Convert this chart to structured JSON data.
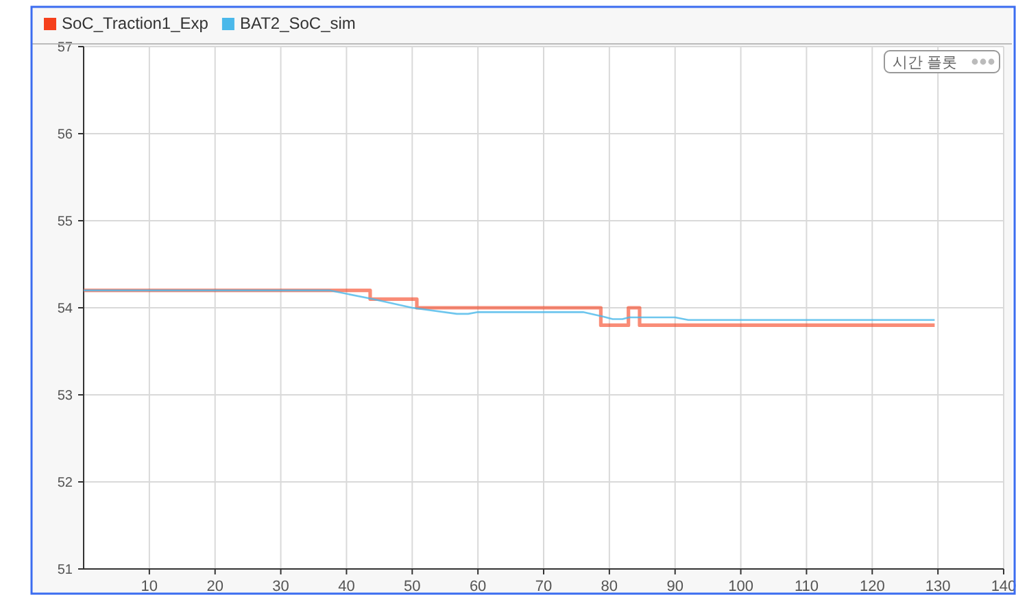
{
  "chart_data": {
    "type": "line",
    "series": [
      {
        "name": "SoC_Traction1_Exp",
        "color": "#f5401c",
        "x": [
          0,
          43.6,
          43.6,
          50.7,
          50.7,
          78.7,
          78.7,
          82.9,
          82.9,
          84.6,
          84.6,
          129.5
        ],
        "values": [
          54.2,
          54.2,
          54.1,
          54.1,
          54.0,
          54.0,
          53.8,
          53.8,
          54.0,
          54.0,
          53.8,
          53.8
        ]
      },
      {
        "name": "BAT2_SoC_sim",
        "color": "#4ab8ea",
        "x": [
          0,
          37.4,
          44,
          50,
          56.8,
          58.5,
          60,
          76,
          79,
          80.5,
          82,
          83,
          90,
          92,
          129.5
        ],
        "values": [
          54.2,
          54.2,
          54.1,
          54.0,
          53.93,
          53.93,
          53.95,
          53.95,
          53.9,
          53.87,
          53.87,
          53.89,
          53.89,
          53.86,
          53.86
        ]
      }
    ],
    "xlim": [
      0,
      140
    ],
    "ylim": [
      51,
      57
    ],
    "xticks": [
      10,
      20,
      30,
      40,
      50,
      60,
      70,
      80,
      90,
      100,
      110,
      120,
      130,
      140
    ],
    "yticks": [
      51,
      52,
      53,
      54,
      55,
      56,
      57
    ],
    "grid": true,
    "legend": "top left",
    "annotations": [
      "시간 플롯"
    ]
  }
}
